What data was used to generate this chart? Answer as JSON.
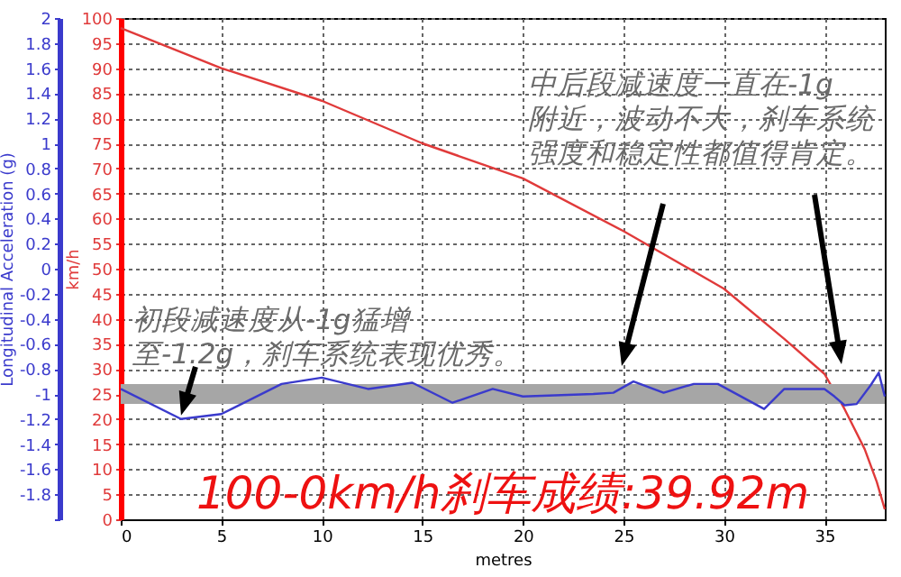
{
  "chart_data": {
    "type": "line",
    "xlabel": "metres",
    "ylabel": "Longitudinal Acceleration (g)",
    "y2label": "km/h",
    "xlim": [
      0,
      38
    ],
    "xticks": [
      0,
      5,
      10,
      15,
      20,
      25,
      30,
      35
    ],
    "ylim": [
      -2,
      2
    ],
    "yticks": [
      {
        "value": -2,
        "label": null
      },
      -1.8,
      -1.6,
      -1.4,
      -1.2,
      -1,
      -0.8,
      -0.6,
      -0.4,
      -0.2,
      0,
      0.2,
      0.4,
      0.6,
      0.8,
      1,
      1.2,
      1.4,
      1.6,
      1.8,
      2
    ],
    "y2lim": [
      0,
      100
    ],
    "y2ticks": [
      0,
      5,
      10,
      15,
      20,
      25,
      30,
      35,
      40,
      45,
      50,
      55,
      60,
      65,
      70,
      75,
      80,
      85,
      90,
      95,
      100
    ],
    "grid": true,
    "series": [
      {
        "color": "#3a3acc",
        "x": [
          0,
          3,
          5,
          8,
          10,
          12.3,
          14.5,
          16.5,
          18.5,
          20,
          23.5,
          24.5,
          25.5,
          27,
          28.5,
          29.7,
          32,
          33,
          35,
          35.5,
          36,
          36.6,
          37.3,
          37.7,
          38
        ],
        "values": [
          -0.96,
          -1.2,
          -1.16,
          -0.92,
          -0.87,
          -0.96,
          -0.91,
          -1.07,
          -0.96,
          -1.02,
          -1,
          -0.99,
          -0.9,
          -0.99,
          -0.92,
          -0.92,
          -1.12,
          -0.96,
          -0.96,
          -1.02,
          -1.09,
          -1.08,
          -0.93,
          -0.83,
          -1.02
        ]
      },
      {
        "color": "#e03a3a",
        "axis": "y2",
        "x": [
          0,
          5,
          10,
          15,
          20,
          25,
          30,
          33,
          35,
          36,
          37,
          37.6,
          38
        ],
        "values": [
          98,
          90,
          83.5,
          75,
          68,
          57.5,
          46,
          36,
          29,
          22,
          14,
          7.5,
          2
        ]
      }
    ],
    "bands": [
      {
        "axis": "y",
        "from": -1.08,
        "to": -0.92,
        "color": "#a6a6a6"
      }
    ],
    "annotations": [
      {
        "text": "初段减速度从-1g猛增至-1.2g，刹车系统表现优秀。",
        "x": 3,
        "y": -1.2
      },
      "中后段减速度一直在-1g附近，波动不大，刹车系统强度和稳定性都值得肯定。",
      "100-0km/h刹车成绩:39.92m"
    ]
  }
}
